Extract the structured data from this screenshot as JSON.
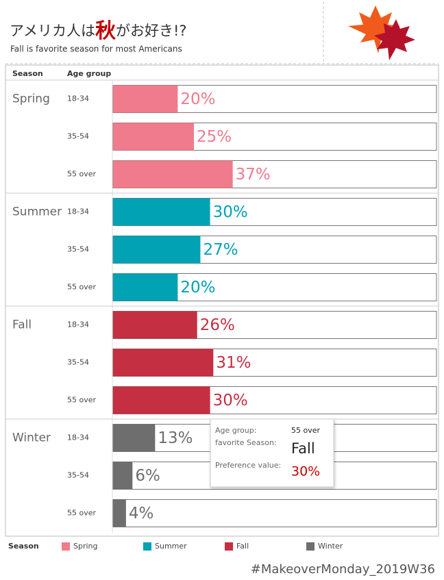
{
  "header": {
    "title": [
      "アメリカ人は",
      "秋",
      "がお好き!?"
    ],
    "subtitle": "Fall is favorite season for most Americans"
  },
  "chart_data": {
    "type": "bar",
    "orientation": "horizontal",
    "column_headers": [
      "Season",
      "Age group"
    ],
    "categories": [
      "18-34",
      "35-54",
      "55 over"
    ],
    "xlim": [
      0,
      100
    ],
    "series": [
      {
        "name": "Spring",
        "color": "#f07b8c",
        "values": [
          20,
          25,
          37
        ],
        "value_labels": [
          "20%",
          "25%",
          "37%"
        ]
      },
      {
        "name": "Summer",
        "color": "#00a2b3",
        "values": [
          30,
          27,
          20
        ],
        "value_labels": [
          "30%",
          "27%",
          "20%"
        ]
      },
      {
        "name": "Fall",
        "color": "#c52f42",
        "values": [
          26,
          31,
          30
        ],
        "value_labels": [
          "26%",
          "31%",
          "30%"
        ]
      },
      {
        "name": "Winter",
        "color": "#6e6e6e",
        "values": [
          13,
          6,
          4
        ],
        "value_labels": [
          "13%",
          "6%",
          "4%"
        ]
      }
    ],
    "legend_title": "Season"
  },
  "tooltip": {
    "labels": [
      "Age group:",
      "favorite Season:",
      "Preference value:"
    ],
    "values": [
      "55 over",
      "Fall",
      "30%"
    ]
  },
  "footer": "#MakeoverMonday_2019W36"
}
